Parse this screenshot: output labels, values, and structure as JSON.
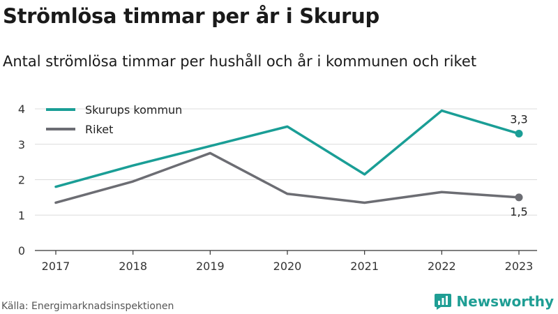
{
  "title": "Strömlösa timmar per år i Skurup",
  "subtitle": "Antal strömlösa timmar per hushåll och år i kommunen och riket",
  "source": "Källa: Energimarknadsinspektionen",
  "brand": {
    "name": "Newsworthy",
    "icon": "newsworthy-logo-icon",
    "color": "#1f9e94"
  },
  "chart_data": {
    "type": "line",
    "x": [
      "2017",
      "2018",
      "2019",
      "2020",
      "2021",
      "2022",
      "2023"
    ],
    "ylim": [
      0,
      4
    ],
    "yticks": [
      "0",
      "1",
      "2",
      "3",
      "4"
    ],
    "grid": true,
    "legend_position": "top-left",
    "series": [
      {
        "name": "Skurups kommun",
        "color": "#1a9e96",
        "values": [
          1.8,
          2.4,
          2.95,
          3.5,
          2.15,
          3.95,
          3.3
        ],
        "end_label": "3,3"
      },
      {
        "name": "Riket",
        "color": "#6c6d73",
        "values": [
          1.35,
          1.95,
          2.75,
          1.6,
          1.35,
          1.65,
          1.5
        ],
        "end_label": "1,5"
      }
    ]
  }
}
